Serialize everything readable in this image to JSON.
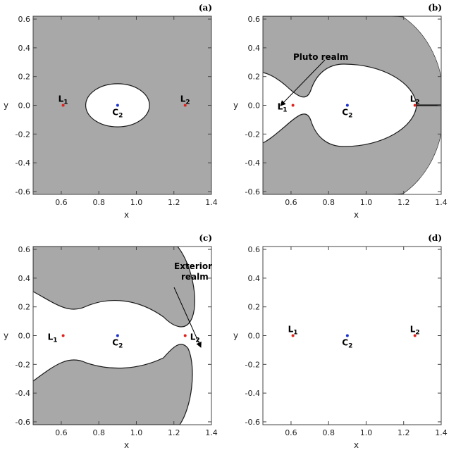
{
  "chart_data": [
    {
      "type": "scatter",
      "panel_label": "(a)",
      "xlabel": "x",
      "ylabel": "y",
      "xlim": [
        0.45,
        1.4
      ],
      "ylim": [
        -0.62,
        0.62
      ],
      "xticks": [
        "0.6",
        "0.8",
        "1.0",
        "1.2",
        "1.4"
      ],
      "yticks": [
        "0.6",
        "0.4",
        "0.2",
        "0.0",
        "-0.2",
        "-0.4",
        "-0.6"
      ],
      "shading": "all-except-ellipse",
      "ellipse": {
        "cx": 0.9,
        "cy": 0.0,
        "rx": 0.17,
        "ry": 0.15
      },
      "points": [
        {
          "name": "L",
          "sub": "1",
          "x": 0.61,
          "y": 0.0,
          "color": "#e0201a"
        },
        {
          "name": "C",
          "sub": "2",
          "x": 0.9,
          "y": 0.0,
          "color": "#1a2fd0"
        },
        {
          "name": "L",
          "sub": "2",
          "x": 1.26,
          "y": 0.0,
          "color": "#e0201a"
        }
      ],
      "annotation": ""
    },
    {
      "type": "scatter",
      "panel_label": "(b)",
      "xlabel": "x",
      "ylabel": "y",
      "xlim": [
        0.45,
        1.4
      ],
      "ylim": [
        -0.62,
        0.62
      ],
      "xticks": [
        "0.6",
        "0.8",
        "1.0",
        "1.2",
        "1.4"
      ],
      "yticks": [
        "0.6",
        "0.4",
        "0.2",
        "0.0",
        "-0.2",
        "-0.4",
        "-0.6"
      ],
      "shading": "b",
      "points": [
        {
          "name": "L",
          "sub": "1",
          "x": 0.61,
          "y": 0.0,
          "color": "#e0201a"
        },
        {
          "name": "C",
          "sub": "2",
          "x": 0.9,
          "y": 0.0,
          "color": "#1a2fd0"
        },
        {
          "name": "L",
          "sub": "2",
          "x": 1.26,
          "y": 0.0,
          "color": "#e0201a"
        }
      ],
      "annotation": "Pluto realm"
    },
    {
      "type": "scatter",
      "panel_label": "(c)",
      "xlabel": "x",
      "ylabel": "y",
      "xlim": [
        0.45,
        1.4
      ],
      "ylim": [
        -0.62,
        0.62
      ],
      "xticks": [
        "0.6",
        "0.8",
        "1.0",
        "1.2",
        "1.4"
      ],
      "yticks": [
        "0.6",
        "0.4",
        "0.2",
        "0.0",
        "-0.2",
        "-0.4",
        "-0.6"
      ],
      "shading": "c",
      "points": [
        {
          "name": "L",
          "sub": "1",
          "x": 0.61,
          "y": 0.0,
          "color": "#e0201a"
        },
        {
          "name": "C",
          "sub": "2",
          "x": 0.9,
          "y": 0.0,
          "color": "#1a2fd0"
        },
        {
          "name": "L",
          "sub": "2",
          "x": 1.26,
          "y": 0.0,
          "color": "#e0201a"
        }
      ],
      "annotation": "Exterior\nrealm"
    },
    {
      "type": "scatter",
      "panel_label": "(d)",
      "xlabel": "x",
      "ylabel": "y",
      "xlim": [
        0.45,
        1.4
      ],
      "ylim": [
        -0.62,
        0.62
      ],
      "xticks": [
        "0.6",
        "0.8",
        "1.0",
        "1.2",
        "1.4"
      ],
      "yticks": [
        "0.6",
        "0.4",
        "0.2",
        "0.0",
        "-0.2",
        "-0.4",
        "-0.6"
      ],
      "shading": "none",
      "points": [
        {
          "name": "L",
          "sub": "1",
          "x": 0.61,
          "y": 0.0,
          "color": "#e0201a"
        },
        {
          "name": "C",
          "sub": "2",
          "x": 0.9,
          "y": 0.0,
          "color": "#1a2fd0"
        },
        {
          "name": "L",
          "sub": "2",
          "x": 1.26,
          "y": 0.0,
          "color": "#e0201a"
        }
      ],
      "annotation": ""
    }
  ],
  "colors": {
    "forbidden": "#a8a8a8",
    "boundary": "#1a1a1a"
  }
}
